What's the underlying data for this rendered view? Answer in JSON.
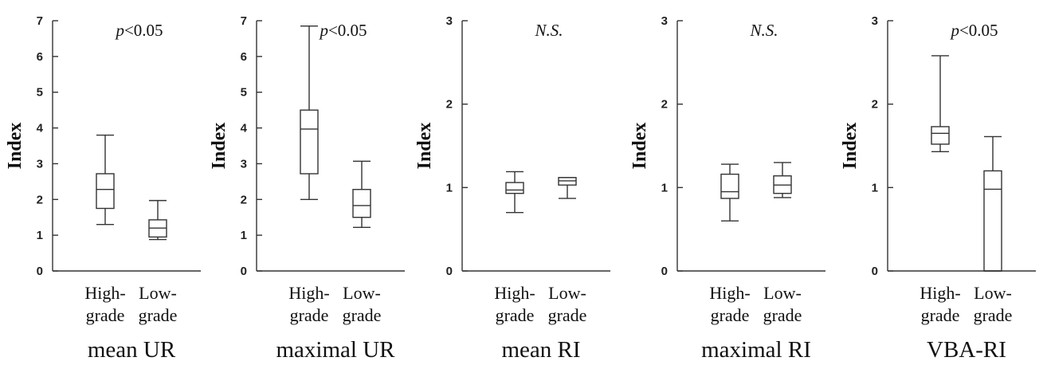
{
  "chart_data": [
    {
      "type": "box",
      "title": "mean UR",
      "ylabel": "Index",
      "ylim": [
        0,
        7
      ],
      "yticks": [
        "0",
        "1",
        "2",
        "3",
        "4",
        "5",
        "6",
        "7"
      ],
      "categories": [
        [
          "High-",
          "grade"
        ],
        [
          "Low-",
          "grade"
        ]
      ],
      "annotation": {
        "italic": "p",
        "rest": "<0.05"
      },
      "boxes": [
        {
          "whisker_low": 1.3,
          "q1": 1.75,
          "median": 2.28,
          "q3": 2.72,
          "whisker_high": 3.8
        },
        {
          "whisker_low": 0.88,
          "q1": 0.95,
          "median": 1.2,
          "q3": 1.43,
          "whisker_high": 1.97
        }
      ]
    },
    {
      "type": "box",
      "title": "maximal UR",
      "ylabel": "Index",
      "ylim": [
        0,
        7
      ],
      "yticks": [
        "0",
        "1",
        "2",
        "3",
        "4",
        "5",
        "6",
        "7"
      ],
      "categories": [
        [
          "High-",
          "grade"
        ],
        [
          "Low-",
          "grade"
        ]
      ],
      "annotation": {
        "italic": "p",
        "rest": "<0.05"
      },
      "boxes": [
        {
          "whisker_low": 2.0,
          "q1": 2.72,
          "median": 3.97,
          "q3": 4.5,
          "whisker_high": 6.85
        },
        {
          "whisker_low": 1.22,
          "q1": 1.5,
          "median": 1.83,
          "q3": 2.28,
          "whisker_high": 3.07
        }
      ]
    },
    {
      "type": "box",
      "title": "mean RI",
      "ylabel": "Index",
      "ylim": [
        0,
        3
      ],
      "yticks": [
        "0",
        "1",
        "2",
        "3"
      ],
      "categories": [
        [
          "High-",
          "grade"
        ],
        [
          "Low-",
          "grade"
        ]
      ],
      "annotation": {
        "italic": "N.S.",
        "rest": ""
      },
      "boxes": [
        {
          "whisker_low": 0.7,
          "q1": 0.93,
          "median": 0.97,
          "q3": 1.06,
          "whisker_high": 1.19
        },
        {
          "whisker_low": 0.87,
          "q1": 1.03,
          "median": 1.08,
          "q3": 1.12,
          "whisker_high": 1.12
        }
      ]
    },
    {
      "type": "box",
      "title": "maximal RI",
      "ylabel": "Index",
      "ylim": [
        0,
        3
      ],
      "yticks": [
        "0",
        "1",
        "2",
        "3"
      ],
      "categories": [
        [
          "High-",
          "grade"
        ],
        [
          "Low-",
          "grade"
        ]
      ],
      "annotation": {
        "italic": "N.S.",
        "rest": ""
      },
      "boxes": [
        {
          "whisker_low": 0.6,
          "q1": 0.87,
          "median": 0.95,
          "q3": 1.16,
          "whisker_high": 1.28
        },
        {
          "whisker_low": 0.88,
          "q1": 0.93,
          "median": 1.03,
          "q3": 1.14,
          "whisker_high": 1.3
        }
      ]
    },
    {
      "type": "box",
      "title": "VBA-RI",
      "ylabel": "Index",
      "ylim": [
        0,
        3
      ],
      "yticks": [
        "0",
        "1",
        "2",
        "3"
      ],
      "categories": [
        [
          "High-",
          "grade"
        ],
        [
          "Low-",
          "grade"
        ]
      ],
      "annotation": {
        "italic": "p",
        "rest": "<0.05"
      },
      "boxes": [
        {
          "whisker_low": 1.43,
          "q1": 1.52,
          "median": 1.65,
          "q3": 1.73,
          "whisker_high": 2.58
        },
        {
          "whisker_low": 0.0,
          "q1": 0.0,
          "median": 0.98,
          "q3": 1.2,
          "whisker_high": 1.61
        }
      ]
    }
  ]
}
